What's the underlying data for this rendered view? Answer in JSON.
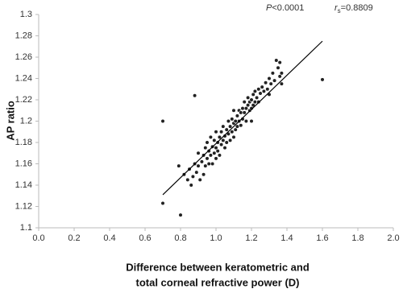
{
  "chart_data": {
    "type": "scatter",
    "p_annotation": {
      "symbol": "P",
      "text": "<0.0001"
    },
    "r_annotation": {
      "symbol": "r",
      "subscript": "s",
      "text": "=0.8809"
    },
    "x_label": [
      "Difference between keratometric and",
      "total corneal refractive power (D)"
    ],
    "y_label": "AP ratio",
    "xlim": [
      0,
      2
    ],
    "ylim": [
      1.1,
      1.3
    ],
    "xticks": [
      {
        "value": 0,
        "label": "0.0"
      },
      0.2,
      0.4,
      0.6,
      0.8,
      {
        "value": 1,
        "label": "1.0"
      },
      1.2,
      1.4,
      1.6,
      1.8,
      {
        "value": 2,
        "label": "2.0"
      }
    ],
    "yticks": [
      1.1,
      1.12,
      1.14,
      1.16,
      1.18,
      1.2,
      1.22,
      1.24,
      1.26,
      1.28,
      1.3
    ],
    "color": "#222222",
    "trendline": {
      "x": [
        0.7,
        1.6
      ],
      "y": [
        1.131,
        1.275
      ]
    },
    "x": [
      0.7,
      0.7,
      0.8,
      0.79,
      0.82,
      0.84,
      0.85,
      0.86,
      0.87,
      0.88,
      0.88,
      0.89,
      0.9,
      0.9,
      0.91,
      0.92,
      0.93,
      0.93,
      0.94,
      0.94,
      0.95,
      0.95,
      0.96,
      0.96,
      0.97,
      0.97,
      0.98,
      0.98,
      0.99,
      0.99,
      1.0,
      1.0,
      1.0,
      1.01,
      1.01,
      1.02,
      1.02,
      1.03,
      1.03,
      1.04,
      1.04,
      1.05,
      1.05,
      1.06,
      1.06,
      1.07,
      1.07,
      1.08,
      1.08,
      1.09,
      1.09,
      1.1,
      1.1,
      1.1,
      1.11,
      1.11,
      1.12,
      1.12,
      1.13,
      1.13,
      1.14,
      1.14,
      1.15,
      1.15,
      1.16,
      1.16,
      1.17,
      1.17,
      1.18,
      1.18,
      1.19,
      1.19,
      1.2,
      1.2,
      1.2,
      1.21,
      1.21,
      1.22,
      1.22,
      1.23,
      1.24,
      1.24,
      1.25,
      1.26,
      1.27,
      1.28,
      1.29,
      1.3,
      1.3,
      1.31,
      1.32,
      1.33,
      1.34,
      1.35,
      1.36,
      1.36,
      1.37,
      1.37,
      1.6
    ],
    "y": [
      1.2,
      1.123,
      1.112,
      1.158,
      1.15,
      1.145,
      1.155,
      1.14,
      1.148,
      1.224,
      1.16,
      1.152,
      1.158,
      1.17,
      1.145,
      1.162,
      1.168,
      1.15,
      1.175,
      1.158,
      1.165,
      1.18,
      1.16,
      1.172,
      1.168,
      1.185,
      1.176,
      1.16,
      1.17,
      1.182,
      1.175,
      1.165,
      1.19,
      1.18,
      1.172,
      1.185,
      1.168,
      1.178,
      1.19,
      1.182,
      1.195,
      1.186,
      1.175,
      1.192,
      1.18,
      1.188,
      1.2,
      1.195,
      1.182,
      1.19,
      1.202,
      1.198,
      1.185,
      1.21,
      1.2,
      1.192,
      1.205,
      1.195,
      1.21,
      1.2,
      1.208,
      1.196,
      1.212,
      1.202,
      1.208,
      1.218,
      1.212,
      1.2,
      1.215,
      1.222,
      1.21,
      1.218,
      1.22,
      1.212,
      1.2,
      1.225,
      1.215,
      1.218,
      1.228,
      1.222,
      1.23,
      1.218,
      1.226,
      1.232,
      1.228,
      1.236,
      1.23,
      1.24,
      1.225,
      1.235,
      1.245,
      1.238,
      1.257,
      1.25,
      1.255,
      1.242,
      1.245,
      1.235,
      1.239
    ]
  }
}
